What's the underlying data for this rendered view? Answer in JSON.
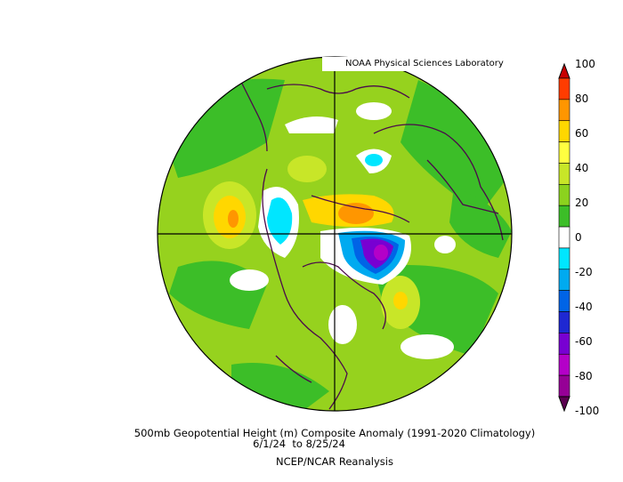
{
  "credit": "NOAA Physical Sciences Laboratory",
  "title": "500mb Geopotential Height (m) Composite Anomaly (1991-2020 Climatology)",
  "date_range": "6/1/24  to 8/25/24",
  "source": "NCEP/NCAR Reanalysis",
  "colorbar": {
    "levels": [
      "100",
      "80",
      "60",
      "40",
      "20",
      "0",
      "-20",
      "-40",
      "-60",
      "-80",
      "-100"
    ],
    "colors": [
      "#c80000",
      "#ff3c00",
      "#ff9600",
      "#ffd700",
      "#ffff40",
      "#c8e628",
      "#8cd21e",
      "#3cbe28",
      "#ffffff",
      "#00e6ff",
      "#00aaf0",
      "#0064e6",
      "#1e28d2",
      "#7800d2",
      "#b400c8",
      "#960096",
      "#5a0050"
    ]
  },
  "colors": {
    "map_background": "#96d21e",
    "outline": "#4b0a4b"
  }
}
